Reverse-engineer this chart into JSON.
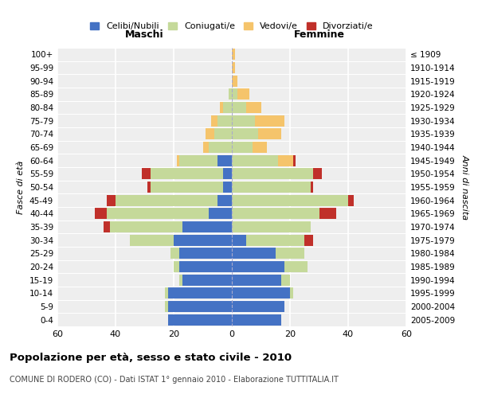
{
  "age_groups": [
    "0-4",
    "5-9",
    "10-14",
    "15-19",
    "20-24",
    "25-29",
    "30-34",
    "35-39",
    "40-44",
    "45-49",
    "50-54",
    "55-59",
    "60-64",
    "65-69",
    "70-74",
    "75-79",
    "80-84",
    "85-89",
    "90-94",
    "95-99",
    "100+"
  ],
  "birth_years": [
    "2005-2009",
    "2000-2004",
    "1995-1999",
    "1990-1994",
    "1985-1989",
    "1980-1984",
    "1975-1979",
    "1970-1974",
    "1965-1969",
    "1960-1964",
    "1955-1959",
    "1950-1954",
    "1945-1949",
    "1940-1944",
    "1935-1939",
    "1930-1934",
    "1925-1929",
    "1920-1924",
    "1915-1919",
    "1910-1914",
    "≤ 1909"
  ],
  "male": {
    "celibe": [
      22,
      22,
      22,
      17,
      18,
      18,
      20,
      17,
      8,
      5,
      3,
      3,
      5,
      0,
      0,
      0,
      0,
      0,
      0,
      0,
      0
    ],
    "coniugato": [
      0,
      1,
      1,
      1,
      2,
      3,
      15,
      25,
      35,
      35,
      25,
      25,
      13,
      8,
      6,
      5,
      3,
      1,
      0,
      0,
      0
    ],
    "vedovo": [
      0,
      0,
      0,
      0,
      0,
      0,
      0,
      0,
      0,
      0,
      0,
      0,
      1,
      2,
      3,
      2,
      1,
      0,
      0,
      0,
      0
    ],
    "divorziato": [
      0,
      0,
      0,
      0,
      0,
      0,
      0,
      2,
      4,
      3,
      1,
      3,
      0,
      0,
      0,
      0,
      0,
      0,
      0,
      0,
      0
    ]
  },
  "female": {
    "nubile": [
      17,
      18,
      20,
      17,
      18,
      15,
      5,
      0,
      0,
      0,
      0,
      0,
      0,
      0,
      0,
      0,
      0,
      0,
      0,
      0,
      0
    ],
    "coniugata": [
      0,
      0,
      1,
      3,
      8,
      10,
      20,
      27,
      30,
      40,
      27,
      28,
      16,
      7,
      9,
      8,
      5,
      2,
      0,
      0,
      0
    ],
    "vedova": [
      0,
      0,
      0,
      0,
      0,
      0,
      0,
      0,
      0,
      0,
      0,
      0,
      5,
      5,
      8,
      10,
      5,
      4,
      2,
      1,
      1
    ],
    "divorziata": [
      0,
      0,
      0,
      0,
      0,
      0,
      3,
      0,
      6,
      2,
      1,
      3,
      1,
      0,
      0,
      0,
      0,
      0,
      0,
      0,
      0
    ]
  },
  "colors": {
    "celibe_nubile": "#4472c4",
    "coniugato": "#c5d99a",
    "vedovo": "#f5c46b",
    "divorziato": "#c0302a"
  },
  "xlim": 60,
  "title": "Popolazione per età, sesso e stato civile - 2010",
  "subtitle": "COMUNE DI RODERO (CO) - Dati ISTAT 1° gennaio 2010 - Elaborazione TUTTITALIA.IT",
  "legend_labels": [
    "Celibi/Nubili",
    "Coniugati/e",
    "Vedovi/e",
    "Divorziati/e"
  ],
  "xlabel_left": "Maschi",
  "xlabel_right": "Femmine",
  "ylabel_left": "Fasce di età",
  "ylabel_right": "Anni di nascita",
  "bg_color": "#eeeeee",
  "grid_color": "#ffffff"
}
